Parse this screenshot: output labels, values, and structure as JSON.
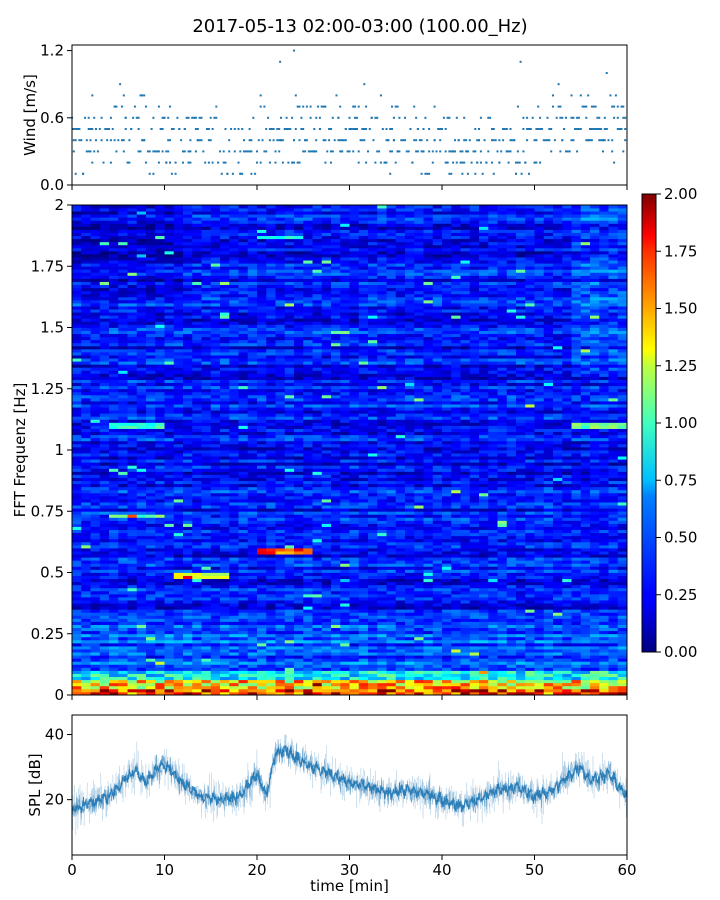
{
  "title": "2017-05-13 02:00-03:00 (100.00_Hz)",
  "chart_data": [
    {
      "type": "scatter",
      "panel": "wind",
      "ylabel": "Wind [m/s]",
      "xlim": [
        0,
        60
      ],
      "ylim": [
        0,
        1.25
      ],
      "yticks": [
        "0.0",
        "0.6",
        "1.2"
      ],
      "ytick_values": [
        0,
        0.6,
        1.2
      ],
      "marker_color": "#1f77b4",
      "levels": [
        0.1,
        0.2,
        0.3,
        0.4,
        0.5,
        0.6,
        0.7,
        0.8,
        0.9,
        1.0,
        1.1,
        1.2
      ],
      "notable_points": [
        {
          "x": 24.0,
          "y": 1.2
        },
        {
          "x": 22.5,
          "y": 1.1
        },
        {
          "x": 48.5,
          "y": 1.1
        }
      ],
      "grid": false
    },
    {
      "type": "heatmap",
      "panel": "spectrogram",
      "ylabel": "FFT Frequenz [Hz]",
      "xlim": [
        0,
        60
      ],
      "ylim": [
        0,
        2
      ],
      "yticks": [
        "0",
        "0.25",
        "0.5",
        "0.75",
        "1",
        "1.25",
        "1.5",
        "1.75",
        "2"
      ],
      "ytick_values": [
        0,
        0.25,
        0.5,
        0.75,
        1,
        1.25,
        1.5,
        1.75,
        2
      ],
      "colormap": "jet",
      "colorbar": {
        "range": [
          0,
          2
        ],
        "ticks": [
          "0.00",
          "0.25",
          "0.50",
          "0.75",
          "1.00",
          "1.25",
          "1.50",
          "1.75",
          "2.00"
        ]
      },
      "features": [
        {
          "label": "strong low-frequency band",
          "f": 0.01,
          "value": 2.0
        },
        {
          "label": "hotspot",
          "t_start": 20,
          "t_end": 26,
          "f": 0.59,
          "value": 1.8
        },
        {
          "label": "band",
          "t_start": 11,
          "t_end": 17,
          "f": 0.49,
          "value": 1.3
        },
        {
          "label": "band",
          "t_start": 4,
          "t_end": 10,
          "f": 0.73,
          "value": 1.1
        },
        {
          "label": "band",
          "t_start": 4,
          "t_end": 10,
          "f": 1.1,
          "value": 1.0
        },
        {
          "label": "band",
          "t_start": 20,
          "t_end": 25,
          "f": 1.87,
          "value": 0.9
        },
        {
          "label": "band",
          "t_start": 54,
          "t_end": 60,
          "f": 1.1,
          "value": 1.1
        }
      ]
    },
    {
      "type": "line",
      "panel": "spl",
      "xlabel": "time [min]",
      "ylabel": "SPL [dB]",
      "xlim": [
        0,
        60
      ],
      "ylim": [
        3,
        46
      ],
      "xticks": [
        "0",
        "10",
        "20",
        "30",
        "40",
        "50",
        "60"
      ],
      "xtick_values": [
        0,
        10,
        20,
        30,
        40,
        50,
        60
      ],
      "yticks": [
        "20",
        "40"
      ],
      "ytick_values": [
        20,
        40
      ],
      "line_color": "#1f77b4",
      "x": [
        0,
        2,
        4,
        6,
        7,
        8,
        9,
        10,
        12,
        14,
        16,
        18,
        19,
        20,
        21,
        22,
        23,
        24,
        25,
        26,
        28,
        30,
        32,
        34,
        36,
        38,
        40,
        42,
        44,
        46,
        48,
        50,
        52,
        54,
        55,
        56,
        58,
        60
      ],
      "values": [
        17,
        19,
        21,
        27,
        29,
        25,
        29,
        31,
        25,
        21,
        20,
        21,
        24,
        28,
        21,
        34,
        36,
        33,
        32,
        30,
        28,
        25,
        24,
        22,
        23,
        22,
        20,
        18,
        20,
        23,
        24,
        21,
        23,
        28,
        30,
        26,
        28,
        21
      ]
    }
  ]
}
